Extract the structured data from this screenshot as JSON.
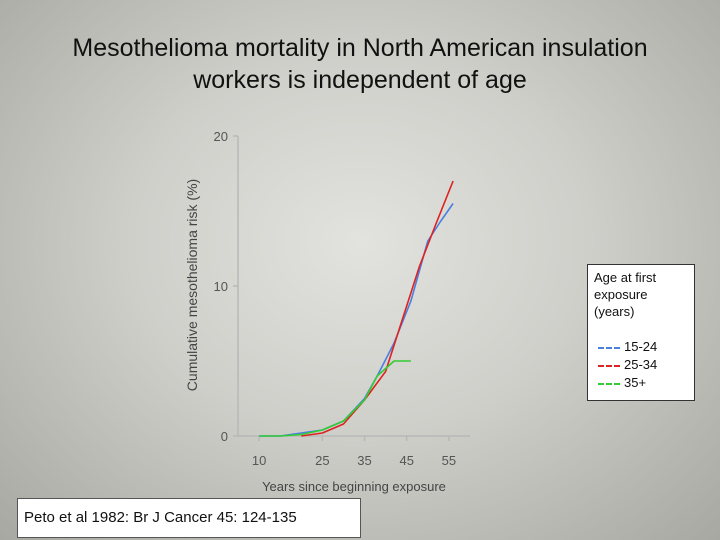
{
  "slide": {
    "title_lines": [
      "Mesothelioma mortality in North American insulation",
      "workers is independent of age"
    ],
    "citation": "Peto et al 1982: Br J Cancer 45: 124-135"
  },
  "colors": {
    "axis": "#b8b8b8",
    "tick_label": "#555555",
    "axis_label": "#444444"
  },
  "chart_data": {
    "type": "line",
    "title": "",
    "xlabel": "Years since beginning exposure",
    "ylabel": "Cumulative mesothelioma risk (%)",
    "xlim": [
      5,
      60
    ],
    "ylim": [
      0,
      20
    ],
    "xticks": [
      10,
      25,
      35,
      45,
      55
    ],
    "yticks": [
      0,
      10,
      20
    ],
    "grid": false,
    "legend": {
      "title": "Age at first\nexposure\n(years)",
      "placement": "right"
    },
    "series": [
      {
        "name": "15-24",
        "color": "#4a7fe0",
        "x": [
          10,
          15,
          20,
          25,
          30,
          35,
          38,
          42,
          46,
          50,
          53,
          56
        ],
        "y": [
          0,
          0,
          0.2,
          0.4,
          1.0,
          2.5,
          4.0,
          6.2,
          9.0,
          13.0,
          14.3,
          15.5
        ]
      },
      {
        "name": "25-34",
        "color": "#dd2222",
        "x": [
          20,
          25,
          30,
          35,
          40,
          44,
          48,
          52,
          56
        ],
        "y": [
          0,
          0.2,
          0.8,
          2.4,
          4.3,
          7.8,
          11.3,
          14.2,
          17.0
        ]
      },
      {
        "name": "35+",
        "color": "#33cc33",
        "x": [
          10,
          15,
          20,
          25,
          30,
          35,
          38,
          42,
          46
        ],
        "y": [
          0,
          0,
          0.1,
          0.4,
          1.0,
          2.4,
          4.0,
          5.0,
          5.0
        ]
      }
    ]
  }
}
